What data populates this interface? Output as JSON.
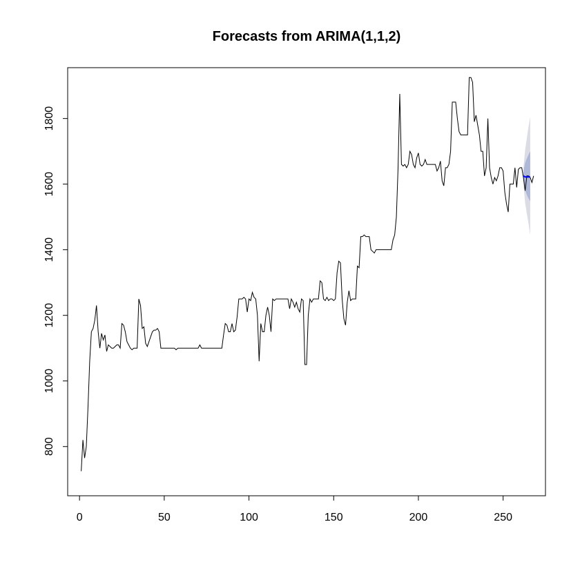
{
  "chart_data": {
    "type": "line",
    "title": "Forecasts from ARIMA(1,1,2)",
    "xlabel": "",
    "ylabel": "",
    "xlim": [
      -7,
      275
    ],
    "ylim": [
      650,
      1955
    ],
    "x_ticks": [
      "0",
      "50",
      "100",
      "150",
      "200",
      "250"
    ],
    "y_ticks": [
      "800",
      "1000",
      "1200",
      "1400",
      "1600",
      "1800"
    ],
    "grid": false,
    "legend": "none",
    "colors": {
      "history": "#000000",
      "forecast": "#0000ff",
      "band_80": "#b0b8d8",
      "band_95": "#dcdce4"
    },
    "series": [
      {
        "values": [
          725,
          820,
          765,
          800,
          920,
          1060,
          1150,
          1160,
          1185,
          1230,
          1150,
          1100,
          1145,
          1125,
          1140,
          1090,
          1110,
          1105,
          1100,
          1100,
          1105,
          1110,
          1110,
          1100,
          1175,
          1170,
          1150,
          1120,
          1110,
          1100,
          1095,
          1100,
          1100,
          1100,
          1250,
          1230,
          1160,
          1165,
          1115,
          1105,
          1120,
          1135,
          1150,
          1155,
          1155,
          1160,
          1150,
          1100,
          1100,
          1100,
          1100,
          1100,
          1100,
          1100,
          1100,
          1100,
          1095,
          1100,
          1100,
          1100,
          1100,
          1100,
          1100,
          1100,
          1100,
          1100,
          1100,
          1100,
          1100,
          1100,
          1110,
          1100,
          1100,
          1100,
          1100,
          1100,
          1100,
          1100,
          1100,
          1100,
          1100,
          1100,
          1100,
          1100,
          1140,
          1175,
          1170,
          1150,
          1150,
          1175,
          1150,
          1155,
          1195,
          1250,
          1250,
          1250,
          1255,
          1250,
          1210,
          1250,
          1245,
          1270,
          1255,
          1250,
          1200,
          1060,
          1175,
          1150,
          1150,
          1200,
          1225,
          1200,
          1150,
          1250,
          1245,
          1250,
          1250,
          1250,
          1250,
          1250,
          1250,
          1250,
          1250,
          1220,
          1250,
          1240,
          1225,
          1240,
          1220,
          1210,
          1250,
          1245,
          1050,
          1050,
          1200,
          1250,
          1240,
          1250,
          1250,
          1250,
          1250,
          1305,
          1300,
          1250,
          1245,
          1255,
          1245,
          1250,
          1250,
          1245,
          1250,
          1330,
          1365,
          1360,
          1250,
          1190,
          1170,
          1240,
          1275,
          1245,
          1250,
          1250,
          1250,
          1350,
          1345,
          1440,
          1440,
          1445,
          1440,
          1440,
          1440,
          1400,
          1395,
          1390,
          1400,
          1400,
          1400,
          1400,
          1400,
          1400,
          1400,
          1400,
          1400,
          1400,
          1430,
          1445,
          1500,
          1650,
          1875,
          1660,
          1655,
          1660,
          1650,
          1660,
          1700,
          1690,
          1660,
          1650,
          1680,
          1695,
          1660,
          1655,
          1660,
          1675,
          1660,
          1660,
          1660,
          1660,
          1660,
          1660,
          1640,
          1650,
          1670,
          1610,
          1595,
          1650,
          1650,
          1660,
          1700,
          1850,
          1850,
          1850,
          1800,
          1760,
          1750,
          1750,
          1750,
          1750,
          1750,
          1925,
          1925,
          1910,
          1790,
          1810,
          1780,
          1750,
          1700,
          1700,
          1625,
          1650,
          1800,
          1650,
          1620,
          1600,
          1620,
          1610,
          1625,
          1650,
          1650,
          1640,
          1575,
          1540,
          1515,
          1600,
          1600,
          1600,
          1650,
          1590,
          1645,
          1650,
          1650,
          1620,
          1580,
          1625,
          1625,
          1620,
          1605,
          1625
        ]
      },
      {
        "x": [
          262,
          263,
          264,
          265,
          266
        ],
        "values": [
          1625,
          1622,
          1622,
          1622,
          1622
        ],
        "lo80": [
          1610,
          1582,
          1567,
          1556,
          1548
        ],
        "hi80": [
          1640,
          1665,
          1678,
          1690,
          1700
        ],
        "lo95": [
          1600,
          1542,
          1510,
          1480,
          1445
        ],
        "hi95": [
          1650,
          1705,
          1740,
          1775,
          1805
        ]
      }
    ]
  }
}
